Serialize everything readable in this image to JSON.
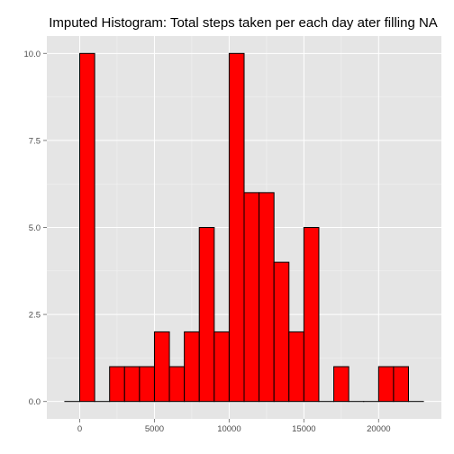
{
  "chart_data": {
    "type": "bar",
    "title": "Imputed Histogram: Total steps taken per each day ater filling NA",
    "xlabel": "",
    "ylabel": "",
    "bin_width": 1000,
    "bins": [
      {
        "x0": -1000,
        "x1": 0,
        "count": 0
      },
      {
        "x0": 0,
        "x1": 1000,
        "count": 10
      },
      {
        "x0": 1000,
        "x1": 2000,
        "count": 0
      },
      {
        "x0": 2000,
        "x1": 3000,
        "count": 1
      },
      {
        "x0": 3000,
        "x1": 4000,
        "count": 1
      },
      {
        "x0": 4000,
        "x1": 5000,
        "count": 1
      },
      {
        "x0": 5000,
        "x1": 6000,
        "count": 2
      },
      {
        "x0": 6000,
        "x1": 7000,
        "count": 1
      },
      {
        "x0": 7000,
        "x1": 8000,
        "count": 2
      },
      {
        "x0": 8000,
        "x1": 9000,
        "count": 5
      },
      {
        "x0": 9000,
        "x1": 10000,
        "count": 2
      },
      {
        "x0": 10000,
        "x1": 11000,
        "count": 10
      },
      {
        "x0": 11000,
        "x1": 12000,
        "count": 6
      },
      {
        "x0": 12000,
        "x1": 13000,
        "count": 6
      },
      {
        "x0": 13000,
        "x1": 14000,
        "count": 4
      },
      {
        "x0": 14000,
        "x1": 15000,
        "count": 2
      },
      {
        "x0": 15000,
        "x1": 16000,
        "count": 5
      },
      {
        "x0": 16000,
        "x1": 17000,
        "count": 0
      },
      {
        "x0": 17000,
        "x1": 18000,
        "count": 1
      },
      {
        "x0": 18000,
        "x1": 19000,
        "count": 0
      },
      {
        "x0": 19000,
        "x1": 20000,
        "count": 0
      },
      {
        "x0": 20000,
        "x1": 21000,
        "count": 1
      },
      {
        "x0": 21000,
        "x1": 22000,
        "count": 1
      },
      {
        "x0": 22000,
        "x1": 23000,
        "count": 0
      }
    ],
    "xlim": [
      -2200,
      24200
    ],
    "ylim": [
      -0.5,
      10.5
    ],
    "x_ticks": [
      0,
      5000,
      10000,
      15000,
      20000
    ],
    "x_tick_labels": [
      "0",
      "5000",
      "10000",
      "15000",
      "20000"
    ],
    "y_ticks": [
      0,
      2.5,
      5,
      7.5,
      10
    ],
    "y_tick_labels": [
      "0.0",
      "2.5",
      "5.0",
      "7.5",
      "10.0"
    ],
    "grid": true,
    "legend": "none",
    "colors": {
      "bar_fill": "#ff0000",
      "bar_outline": "#000000",
      "panel_background": "#e5e5e5",
      "grid_major": "#ffffff",
      "grid_minor": "#f2f2f2",
      "tick_text": "#4d4d4d"
    }
  }
}
